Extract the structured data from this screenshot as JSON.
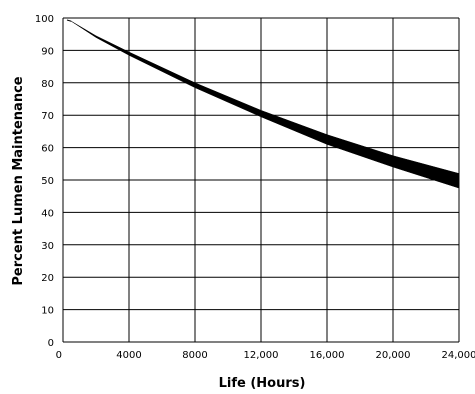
{
  "chart_data": {
    "type": "area",
    "title": "",
    "xlabel": "Life (Hours)",
    "ylabel": "Percent Lumen Maintenance",
    "xlim": [
      0,
      24000
    ],
    "ylim": [
      0,
      100
    ],
    "grid": true,
    "x_ticks": [
      "0",
      "4000",
      "8000",
      "12,000",
      "16,000",
      "20,000",
      "24,000"
    ],
    "y_ticks": [
      "0",
      "10",
      "20",
      "30",
      "40",
      "50",
      "60",
      "70",
      "80",
      "90",
      "100"
    ],
    "series": [
      {
        "band": "upper",
        "x": [
          500,
          2000,
          4000,
          8000,
          12000,
          16000,
          20000,
          24000
        ],
        "values": [
          99,
          94.5,
          89.5,
          80,
          71.5,
          64,
          57.5,
          52
        ]
      },
      {
        "band": "lower",
        "x": [
          500,
          2000,
          4000,
          8000,
          12000,
          16000,
          20000,
          24000
        ],
        "values": [
          99,
          94,
          88.5,
          78.5,
          69.5,
          61,
          54,
          47.5
        ]
      }
    ],
    "colors": {
      "band": "#000000",
      "grid": "#000000"
    }
  }
}
